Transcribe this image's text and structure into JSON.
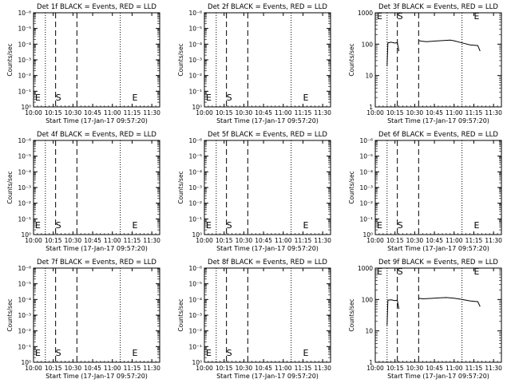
{
  "chart_data": [
    {
      "type": "line",
      "title": "Det 1f BLACK = Events, RED = LLD",
      "xlabel": "Start Time (17-Jan-17 09:57:20)",
      "ylabel": "Counts/sec",
      "x_ticks": [
        "10:00",
        "10:15",
        "10:30",
        "10:45",
        "11:00",
        "11:15",
        "11:30"
      ],
      "y_scale": "log",
      "y_ticks": [
        "10⁰",
        "10⁻¹",
        "10⁻²",
        "10⁻³",
        "10⁻⁴",
        "10⁻⁵",
        "10⁻⁶"
      ],
      "markers": [
        "E",
        "S",
        "E"
      ],
      "series": []
    },
    {
      "type": "line",
      "title": "Det 2f BLACK = Events, RED = LLD",
      "xlabel": "Start Time (17-Jan-17 09:57:20)",
      "ylabel": "Counts/sec",
      "x_ticks": [
        "10:00",
        "10:15",
        "10:30",
        "10:45",
        "11:00",
        "11:15",
        "11:30"
      ],
      "y_scale": "log",
      "y_ticks": [
        "10⁰",
        "10⁻¹",
        "10⁻²",
        "10⁻³",
        "10⁻⁴",
        "10⁻⁵",
        "10⁻⁶"
      ],
      "markers": [
        "E",
        "S",
        "E"
      ],
      "series": []
    },
    {
      "type": "line",
      "title": "Det 3f BLACK = Events, RED = LLD",
      "xlabel": "Start Time (17-Jan-17 09:57:20)",
      "ylabel": "Counts/sec",
      "x_ticks": [
        "10:00",
        "10:15",
        "10:30",
        "10:45",
        "11:00",
        "11:15",
        "11:30"
      ],
      "y_scale": "log",
      "y_ticks": [
        "1",
        "10",
        "100",
        "1000"
      ],
      "markers": [
        "E",
        "S",
        "E"
      ],
      "series": [
        {
          "values": [
            [
              10.15,
              20
            ],
            [
              10.16,
              110
            ],
            [
              10.2,
              115
            ],
            [
              10.25,
              108
            ],
            [
              10.28,
              112
            ],
            [
              10.3,
              60
            ]
          ],
          "end": 10.3
        },
        {
          "values": [
            [
              10.55,
              130
            ],
            [
              10.58,
              125
            ],
            [
              10.65,
              120
            ],
            [
              10.75,
              125
            ],
            [
              10.85,
              130
            ],
            [
              10.95,
              135
            ],
            [
              11.0,
              128
            ],
            [
              11.1,
              110
            ],
            [
              11.2,
              95
            ],
            [
              11.3,
              90
            ],
            [
              11.33,
              60
            ]
          ]
        }
      ]
    },
    {
      "type": "line",
      "title": "Det 4f BLACK = Events, RED = LLD",
      "xlabel": "Start Time (17-Jan-17 09:57:20)",
      "ylabel": "Counts/sec",
      "x_ticks": [
        "10:00",
        "10:15",
        "10:30",
        "10:45",
        "11:00",
        "11:15",
        "11:30"
      ],
      "y_scale": "log",
      "y_ticks": [
        "10⁰",
        "10⁻¹",
        "10⁻²",
        "10⁻³",
        "10⁻⁴",
        "10⁻⁵",
        "10⁻⁶"
      ],
      "markers": [
        "E",
        "S",
        "E"
      ],
      "series": []
    },
    {
      "type": "line",
      "title": "Det 5f BLACK = Events, RED = LLD",
      "xlabel": "Start Time (17-Jan-17 09:57:20)",
      "ylabel": "Counts/sec",
      "x_ticks": [
        "10:00",
        "10:15",
        "10:30",
        "10:45",
        "11:00",
        "11:15",
        "11:30"
      ],
      "y_scale": "log",
      "y_ticks": [
        "10⁰",
        "10⁻¹",
        "10⁻²",
        "10⁻³",
        "10⁻⁴",
        "10⁻⁵",
        "10⁻⁶"
      ],
      "markers": [
        "E",
        "S",
        "E"
      ],
      "series": []
    },
    {
      "type": "line",
      "title": "Det 6f BLACK = Events, RED = LLD",
      "xlabel": "Start Time (17-Jan-17 09:57:20)",
      "ylabel": "Counts/sec",
      "x_ticks": [
        "10:00",
        "10:15",
        "10:30",
        "10:45",
        "11:00",
        "11:15",
        "11:30"
      ],
      "y_scale": "log",
      "y_ticks": [
        "10⁰",
        "10⁻¹",
        "10⁻²",
        "10⁻³",
        "10⁻⁴",
        "10⁻⁵",
        "10⁻⁶"
      ],
      "markers": [
        "E",
        "S",
        "E"
      ],
      "series": []
    },
    {
      "type": "line",
      "title": "Det 7f BLACK = Events, RED = LLD",
      "xlabel": "Start Time (17-Jan-17 09:57:20)",
      "ylabel": "Counts/sec",
      "x_ticks": [
        "10:00",
        "10:15",
        "10:30",
        "10:45",
        "11:00",
        "11:15",
        "11:30"
      ],
      "y_scale": "log",
      "y_ticks": [
        "10⁰",
        "10⁻¹",
        "10⁻²",
        "10⁻³",
        "10⁻⁴",
        "10⁻⁵",
        "10⁻⁶"
      ],
      "markers": [
        "E",
        "S",
        "E"
      ],
      "series": []
    },
    {
      "type": "line",
      "title": "Det 8f BLACK = Events, RED = LLD",
      "xlabel": "Start Time (17-Jan-17 09:57:20)",
      "ylabel": "Counts/sec",
      "x_ticks": [
        "10:00",
        "10:15",
        "10:30",
        "10:45",
        "11:00",
        "11:15",
        "11:30"
      ],
      "y_scale": "log",
      "y_ticks": [
        "10⁰",
        "10⁻¹",
        "10⁻²",
        "10⁻³",
        "10⁻⁴",
        "10⁻⁵",
        "10⁻⁶"
      ],
      "markers": [
        "E",
        "S",
        "E"
      ],
      "series": []
    },
    {
      "type": "line",
      "title": "Det 9f BLACK = Events, RED = LLD",
      "xlabel": "Start Time (17-Jan-17 09:57:20)",
      "ylabel": "Counts/sec",
      "x_ticks": [
        "10:00",
        "10:15",
        "10:30",
        "10:45",
        "11:00",
        "11:15",
        "11:30"
      ],
      "y_scale": "log",
      "y_ticks": [
        "1",
        "10",
        "100",
        "1000"
      ],
      "markers": [
        "E",
        "S",
        "E"
      ],
      "series": [
        {
          "values": [
            [
              10.15,
              15
            ],
            [
              10.16,
              95
            ],
            [
              10.2,
              98
            ],
            [
              10.25,
              92
            ],
            [
              10.28,
              95
            ],
            [
              10.3,
              50
            ]
          ]
        },
        {
          "values": [
            [
              10.55,
              110
            ],
            [
              10.6,
              105
            ],
            [
              10.7,
              108
            ],
            [
              10.8,
              112
            ],
            [
              10.9,
              115
            ],
            [
              11.0,
              110
            ],
            [
              11.1,
              100
            ],
            [
              11.2,
              90
            ],
            [
              11.3,
              85
            ],
            [
              11.33,
              60
            ]
          ]
        }
      ]
    }
  ]
}
